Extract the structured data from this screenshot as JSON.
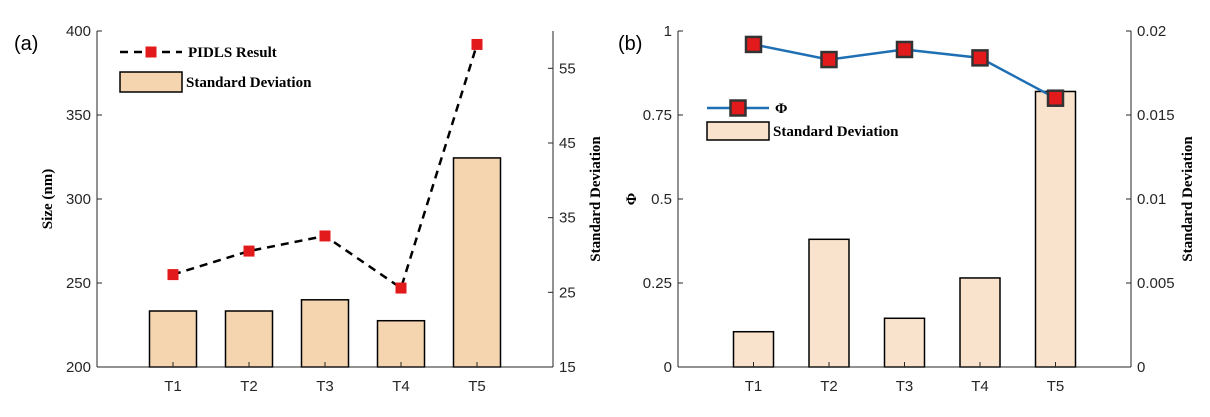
{
  "chart_data": [
    {
      "type": "bar",
      "panel_label": "(a)",
      "categories": [
        "T1",
        "T2",
        "T3",
        "T4",
        "T5"
      ],
      "ylabel": "Size (nm)",
      "y2label": "Standard Deviation",
      "ylim": [
        200,
        400
      ],
      "y2lim": [
        15,
        60
      ],
      "yticks": [
        "200",
        "250",
        "300",
        "350",
        "400"
      ],
      "y2ticks": [
        "15",
        "25",
        "35",
        "45",
        "55"
      ],
      "series": [
        {
          "name": "PIDLS Result",
          "kind": "line",
          "axis": "left",
          "color": "#000000",
          "marker_color": "#e31a1c",
          "values": [
            255,
            269,
            278,
            247,
            392
          ]
        },
        {
          "name": "Standard Deviation",
          "kind": "bar",
          "axis": "right",
          "color": "#f5d5b0",
          "values": [
            22.5,
            22.5,
            24.0,
            21.2,
            43.0
          ]
        }
      ],
      "legend_position": "top-left",
      "grid": false
    },
    {
      "type": "bar",
      "panel_label": "(b)",
      "categories": [
        "T1",
        "T2",
        "T3",
        "T4",
        "T5"
      ],
      "ylabel": "Φ",
      "y2label": "Standard Deviation",
      "ylim": [
        0,
        1
      ],
      "y2lim": [
        0,
        0.02
      ],
      "yticks": [
        "0",
        "0.25",
        "0.5",
        "0.75",
        "1"
      ],
      "y2ticks": [
        "0",
        "0.005",
        "0.01",
        "0.015",
        "0.02"
      ],
      "series": [
        {
          "name": "Φ",
          "kind": "line",
          "axis": "left",
          "color": "#1f6fb4",
          "marker_color": "#e31a1c",
          "values": [
            0.96,
            0.915,
            0.945,
            0.92,
            0.8
          ]
        },
        {
          "name": "Standard Deviation",
          "kind": "bar",
          "axis": "right",
          "color": "#fae3cc",
          "values": [
            0.0021,
            0.0076,
            0.0029,
            0.0053,
            0.0164
          ]
        }
      ],
      "legend_position": "top-left",
      "grid": false
    }
  ]
}
